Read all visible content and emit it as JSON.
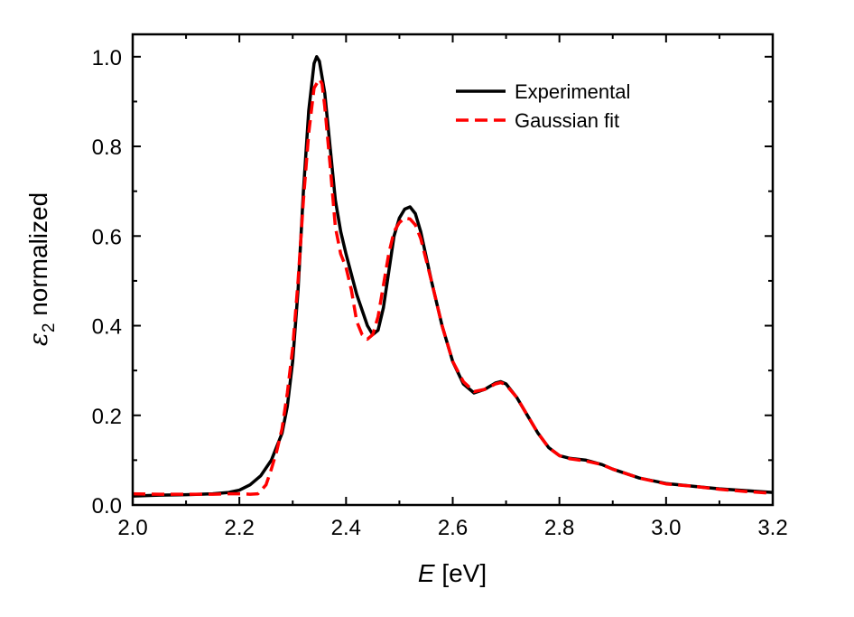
{
  "chart_data": {
    "type": "line",
    "xlabel": {
      "var": "E",
      "unit": " [eV]"
    },
    "ylabel": {
      "symbol": "ε",
      "sub": "2",
      "text": " normalized"
    },
    "xlim": [
      2.0,
      3.2
    ],
    "ylim": [
      0.0,
      1.05
    ],
    "xticks": [
      2.0,
      2.2,
      2.4,
      2.6,
      2.8,
      3.0,
      3.2
    ],
    "xtick_labels": [
      "2.0",
      "2.2",
      "2.4",
      "2.6",
      "2.8",
      "3.0",
      "3.2"
    ],
    "yticks": [
      0.0,
      0.2,
      0.4,
      0.6,
      0.8,
      1.0
    ],
    "ytick_labels": [
      "0.0",
      "0.2",
      "0.4",
      "0.6",
      "0.8",
      "1.0"
    ],
    "grid": false,
    "legend_position": "top-right",
    "series": [
      {
        "name": "Experimental",
        "color": "#000000",
        "style": "solid",
        "x": [
          2.0,
          2.05,
          2.1,
          2.15,
          2.18,
          2.2,
          2.22,
          2.24,
          2.26,
          2.28,
          2.29,
          2.3,
          2.31,
          2.32,
          2.33,
          2.34,
          2.345,
          2.35,
          2.36,
          2.37,
          2.38,
          2.39,
          2.4,
          2.42,
          2.44,
          2.45,
          2.46,
          2.47,
          2.48,
          2.49,
          2.5,
          2.51,
          2.52,
          2.53,
          2.54,
          2.56,
          2.58,
          2.6,
          2.62,
          2.64,
          2.66,
          2.68,
          2.69,
          2.7,
          2.72,
          2.74,
          2.76,
          2.78,
          2.8,
          2.82,
          2.85,
          2.88,
          2.9,
          2.95,
          3.0,
          3.05,
          3.1,
          3.15,
          3.2
        ],
        "y": [
          0.02,
          0.022,
          0.023,
          0.025,
          0.028,
          0.033,
          0.045,
          0.065,
          0.1,
          0.16,
          0.22,
          0.32,
          0.48,
          0.7,
          0.88,
          0.985,
          1.0,
          0.99,
          0.92,
          0.8,
          0.68,
          0.61,
          0.56,
          0.47,
          0.4,
          0.38,
          0.39,
          0.44,
          0.52,
          0.6,
          0.64,
          0.66,
          0.665,
          0.65,
          0.61,
          0.5,
          0.4,
          0.32,
          0.27,
          0.25,
          0.258,
          0.272,
          0.275,
          0.27,
          0.24,
          0.2,
          0.16,
          0.128,
          0.11,
          0.104,
          0.1,
          0.09,
          0.08,
          0.06,
          0.048,
          0.042,
          0.036,
          0.032,
          0.028
        ]
      },
      {
        "name": "Gaussian fit",
        "color": "#ff0000",
        "style": "dashed",
        "x": [
          2.0,
          2.05,
          2.1,
          2.15,
          2.18,
          2.2,
          2.22,
          2.235,
          2.25,
          2.26,
          2.27,
          2.28,
          2.29,
          2.3,
          2.31,
          2.32,
          2.33,
          2.34,
          2.35,
          2.355,
          2.36,
          2.37,
          2.38,
          2.39,
          2.4,
          2.41,
          2.42,
          2.43,
          2.44,
          2.45,
          2.46,
          2.47,
          2.48,
          2.49,
          2.5,
          2.51,
          2.52,
          2.53,
          2.54,
          2.56,
          2.58,
          2.6,
          2.62,
          2.64,
          2.66,
          2.68,
          2.69,
          2.7,
          2.72,
          2.74,
          2.76,
          2.78,
          2.8,
          2.82,
          2.85,
          2.88,
          2.9,
          2.95,
          3.0,
          3.05,
          3.1,
          3.15,
          3.2
        ],
        "y": [
          0.025,
          0.024,
          0.024,
          0.024,
          0.025,
          0.025,
          0.024,
          0.025,
          0.045,
          0.08,
          0.12,
          0.17,
          0.25,
          0.35,
          0.5,
          0.68,
          0.83,
          0.93,
          0.95,
          0.94,
          0.89,
          0.76,
          0.62,
          0.56,
          0.53,
          0.48,
          0.41,
          0.38,
          0.37,
          0.38,
          0.42,
          0.49,
          0.56,
          0.61,
          0.63,
          0.64,
          0.638,
          0.625,
          0.595,
          0.5,
          0.4,
          0.32,
          0.275,
          0.253,
          0.258,
          0.27,
          0.273,
          0.268,
          0.24,
          0.2,
          0.16,
          0.128,
          0.11,
          0.103,
          0.098,
          0.09,
          0.08,
          0.06,
          0.047,
          0.042,
          0.035,
          0.03,
          0.026
        ]
      }
    ]
  }
}
